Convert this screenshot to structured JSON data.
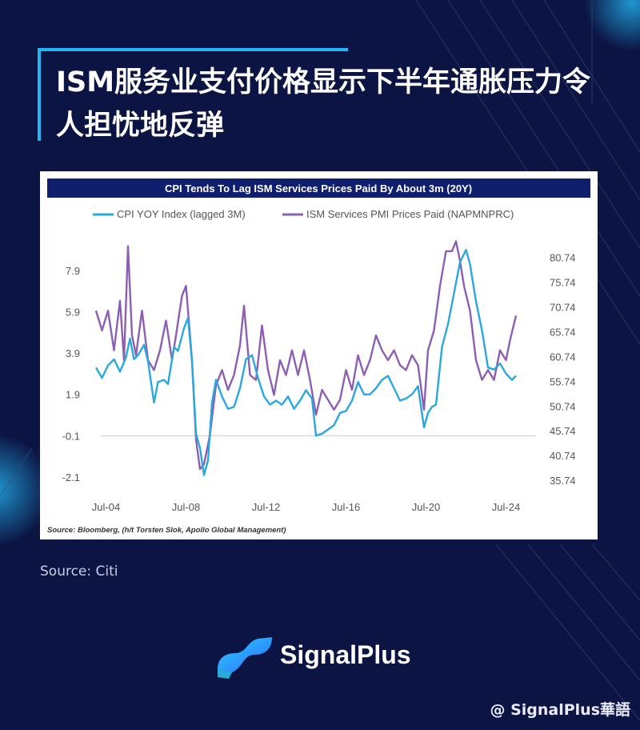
{
  "headline": "ISM服务业支付价格显示下半年通胀压力令人担忧地反弹",
  "source_note": "Source: Citi",
  "brand": {
    "name": "SignalPlus"
  },
  "watermark": "@ SignalPlus華語",
  "colors": {
    "background": "#0b1442",
    "accent": "#1fb6f5",
    "chart_header": "#0f1f6e",
    "cpi_line": "#29a8e0",
    "ism_line": "#8d5fb3"
  },
  "chart_data": {
    "type": "line",
    "title": "CPI Tends To Lag ISM Services Prices Paid By About 3m (20Y)",
    "source": "Source: Bloomberg, (h/t Torsten Slok, Apollo Global Management)",
    "legend_placement": "top",
    "x_tick_labels": [
      "Jul-04",
      "Jul-08",
      "Jul-12",
      "Jul-16",
      "Jul-20",
      "Jul-24"
    ],
    "x_range": [
      2004.0,
      2026.0
    ],
    "left_axis": {
      "ticks": [
        "7.9",
        "5.9",
        "3.9",
        "1.9",
        "-0.1",
        "-2.1"
      ],
      "range": [
        -2.8,
        9.6
      ]
    },
    "right_axis": {
      "ticks": [
        "80.74",
        "75.74",
        "70.74",
        "65.74",
        "60.74",
        "55.74",
        "50.74",
        "45.74",
        "40.74",
        "35.74"
      ],
      "range": [
        33.5,
        85.2
      ]
    },
    "reference_line": {
      "axis": "left",
      "value": -0.1
    },
    "series": [
      {
        "name": "CPI YOY Index (lagged 3M)",
        "axis": "left",
        "x": [
          2004.0,
          2004.3,
          2004.6,
          2004.9,
          2005.2,
          2005.5,
          2005.7,
          2005.9,
          2006.1,
          2006.4,
          2006.6,
          2006.9,
          2007.1,
          2007.4,
          2007.6,
          2007.9,
          2008.1,
          2008.4,
          2008.6,
          2008.8,
          2009.0,
          2009.2,
          2009.4,
          2009.6,
          2009.8,
          2010.0,
          2010.3,
          2010.6,
          2010.9,
          2011.2,
          2011.5,
          2011.8,
          2012.1,
          2012.4,
          2012.7,
          2013.0,
          2013.3,
          2013.6,
          2013.9,
          2014.2,
          2014.5,
          2014.8,
          2015.0,
          2015.3,
          2015.6,
          2015.9,
          2016.2,
          2016.5,
          2016.8,
          2017.1,
          2017.4,
          2017.7,
          2018.0,
          2018.3,
          2018.6,
          2018.9,
          2019.2,
          2019.5,
          2019.8,
          2020.1,
          2020.4,
          2020.6,
          2020.8,
          2021.0,
          2021.3,
          2021.6,
          2021.9,
          2022.2,
          2022.5,
          2022.7,
          2023.0,
          2023.3,
          2023.6,
          2023.9,
          2024.2,
          2024.5,
          2024.8,
          2025.0
        ],
        "values": [
          3.2,
          2.7,
          3.3,
          3.6,
          3.0,
          3.7,
          4.6,
          3.6,
          3.8,
          4.3,
          3.5,
          1.5,
          2.5,
          2.6,
          2.4,
          4.2,
          4.0,
          5.1,
          5.6,
          3.5,
          0.0,
          -0.7,
          -2.0,
          -1.3,
          1.5,
          2.6,
          1.8,
          1.2,
          1.3,
          2.2,
          3.6,
          3.8,
          2.7,
          1.8,
          1.4,
          1.6,
          1.4,
          1.8,
          1.2,
          1.6,
          2.1,
          1.7,
          -0.1,
          0.0,
          0.2,
          0.4,
          1.0,
          1.1,
          1.6,
          2.5,
          1.9,
          1.9,
          2.2,
          2.6,
          2.8,
          2.2,
          1.6,
          1.7,
          1.9,
          2.3,
          0.3,
          1.0,
          1.3,
          1.4,
          4.2,
          5.3,
          6.8,
          8.3,
          8.9,
          8.2,
          6.4,
          5.0,
          3.2,
          3.1,
          3.4,
          2.9,
          2.6,
          2.8
        ]
      },
      {
        "name": "ISM Services PMI Prices Paid (NAPMNPRC)",
        "axis": "right",
        "x": [
          2004.0,
          2004.3,
          2004.6,
          2004.9,
          2005.2,
          2005.4,
          2005.6,
          2005.8,
          2006.0,
          2006.3,
          2006.6,
          2006.9,
          2007.2,
          2007.5,
          2007.8,
          2008.0,
          2008.3,
          2008.5,
          2008.8,
          2009.0,
          2009.2,
          2009.4,
          2009.7,
          2010.0,
          2010.3,
          2010.6,
          2010.9,
          2011.2,
          2011.4,
          2011.7,
          2012.0,
          2012.3,
          2012.6,
          2012.9,
          2013.2,
          2013.5,
          2013.8,
          2014.1,
          2014.4,
          2014.7,
          2015.0,
          2015.3,
          2015.6,
          2015.9,
          2016.2,
          2016.5,
          2016.8,
          2017.1,
          2017.4,
          2017.7,
          2018.0,
          2018.3,
          2018.6,
          2018.9,
          2019.2,
          2019.5,
          2019.8,
          2020.1,
          2020.4,
          2020.6,
          2020.9,
          2021.2,
          2021.5,
          2021.8,
          2022.0,
          2022.2,
          2022.4,
          2022.7,
          2023.0,
          2023.3,
          2023.6,
          2023.9,
          2024.2,
          2024.5,
          2024.7,
          2025.0
        ],
        "values": [
          70.0,
          66.0,
          70.0,
          62.0,
          72.0,
          60.0,
          83.0,
          65.0,
          61.0,
          70.0,
          60.0,
          58.0,
          62.0,
          68.0,
          60.0,
          65.0,
          73.0,
          75.0,
          60.0,
          44.0,
          38.0,
          39.0,
          45.0,
          55.0,
          58.0,
          54.0,
          57.0,
          63.0,
          71.0,
          57.0,
          56.0,
          67.0,
          58.0,
          53.0,
          60.0,
          57.0,
          62.0,
          57.0,
          62.0,
          56.0,
          49.0,
          54.0,
          52.0,
          50.0,
          52.0,
          58.0,
          54.0,
          61.0,
          57.0,
          60.0,
          65.0,
          62.0,
          60.0,
          62.0,
          59.0,
          58.0,
          61.0,
          59.0,
          50.0,
          62.0,
          66.0,
          75.0,
          82.0,
          82.0,
          84.0,
          80.0,
          75.0,
          70.0,
          60.0,
          56.0,
          58.0,
          56.0,
          62.0,
          60.0,
          64.0,
          69.0
        ]
      }
    ]
  }
}
